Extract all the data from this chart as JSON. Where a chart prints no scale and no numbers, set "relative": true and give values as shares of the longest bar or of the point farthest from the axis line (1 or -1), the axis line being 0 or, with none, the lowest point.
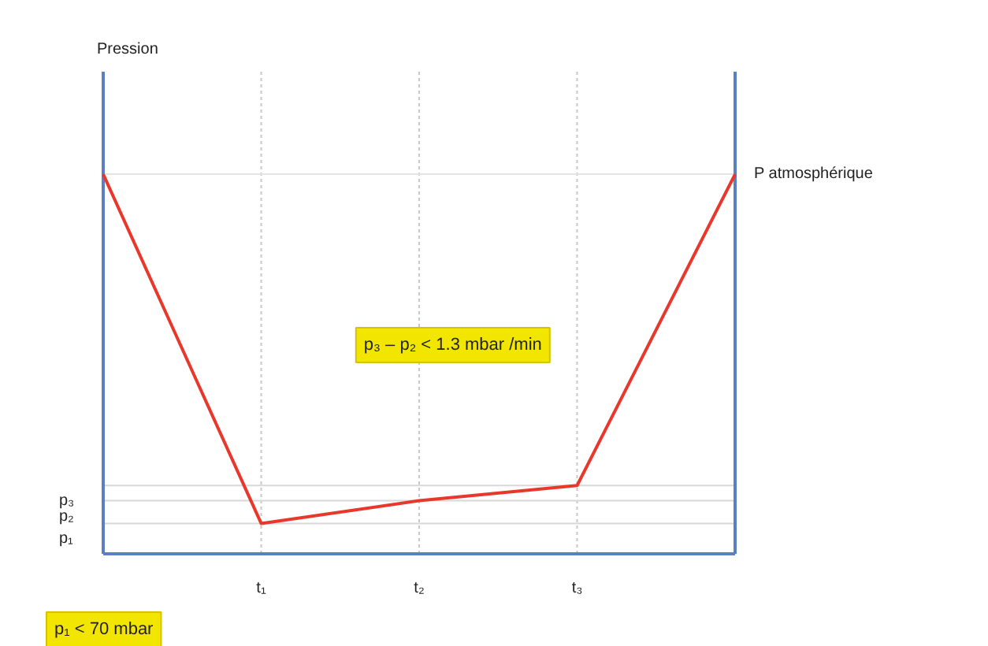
{
  "chart_data": {
    "type": "line",
    "relative": true,
    "categories": [
      null,
      "t₁",
      "t₂",
      "t₃",
      null
    ],
    "series": [
      {
        "color": "#e8382c",
        "values": [
          1,
          0.08,
          0.14,
          0.18,
          1
        ]
      }
    ],
    "ref_lines": [
      {
        "axis": "y",
        "value": 0.08,
        "label": "p₁",
        "color": "#d8d8d8"
      },
      {
        "axis": "y",
        "value": 0.14,
        "label": "p₂",
        "color": "#d8d8d8"
      },
      {
        "axis": "y",
        "value": 0.18,
        "label": "p₃",
        "color": "#d8d8d8"
      },
      {
        "axis": "y",
        "value": 1,
        "label": "P atmosphérique",
        "color": "#e4e4e4"
      }
    ],
    "annotations": [
      "Pression",
      "p₃ – p₂ < 1.3 mbar /min",
      "p₁ < 70 mbar"
    ],
    "grid": "x",
    "tick_labels": "x",
    "marker": "none",
    "line_style": "solid"
  }
}
